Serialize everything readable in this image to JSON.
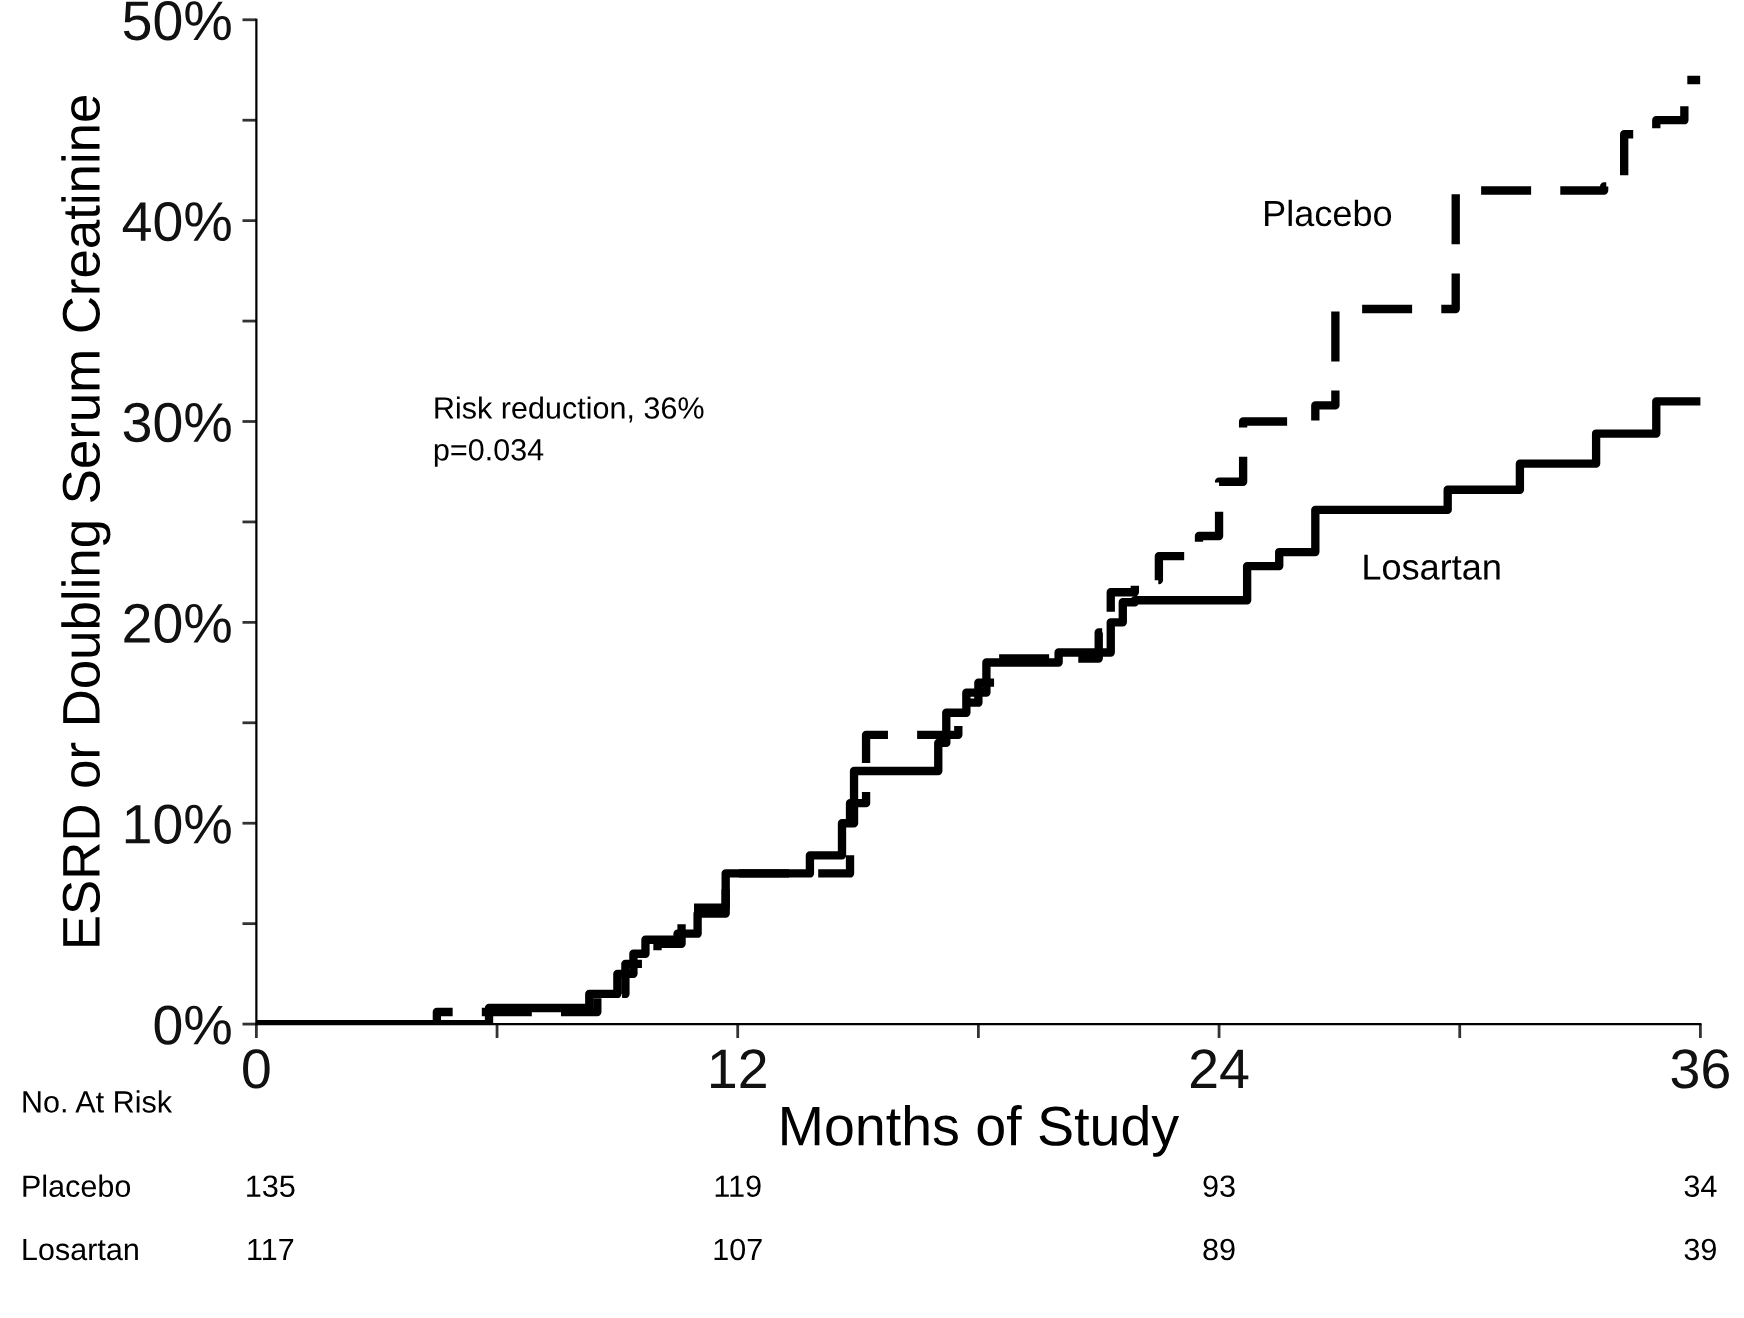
{
  "chart_data": {
    "type": "step",
    "xlabel": "Months of Study",
    "ylabel": "ESRD or Doubling Serum Creatinine",
    "xlim": [
      0,
      36
    ],
    "xticks": [
      0,
      {
        "value": 6,
        "label": null
      },
      12,
      {
        "value": 18,
        "label": null
      },
      24,
      {
        "value": 30,
        "label": null
      },
      36
    ],
    "ylim": [
      0,
      50
    ],
    "yticks": [
      {
        "value": 0,
        "label": "0%"
      },
      {
        "value": 5,
        "label": null
      },
      {
        "value": 10,
        "label": "10%"
      },
      {
        "value": 15,
        "label": null
      },
      {
        "value": 20,
        "label": "20%"
      },
      {
        "value": 25,
        "label": null
      },
      {
        "value": 30,
        "label": "30%"
      },
      {
        "value": 35,
        "label": null
      },
      {
        "value": 40,
        "label": "40%"
      },
      {
        "value": 45,
        "label": null
      },
      {
        "value": 50,
        "label": "50%"
      }
    ],
    "grid": false,
    "legend": false,
    "series": [
      {
        "name": "Placebo",
        "color": "#000000",
        "line_style": "dashed",
        "x": [
          0,
          4.5,
          8.5,
          9.2,
          10,
          10.6,
          11.7,
          14.6,
          14.8,
          15.2,
          17.0,
          17.5,
          18,
          18.5,
          20.0,
          21.0,
          21.3,
          21.9,
          22.5,
          23.5,
          24.0,
          24.6,
          26.4,
          26.9,
          29.0,
          29.9,
          33.6,
          34.1,
          34.9,
          35.6,
          36
        ],
        "values": [
          0,
          0.6,
          1.5,
          3,
          4,
          5.8,
          7.5,
          7.5,
          11,
          14.4,
          14.4,
          16,
          17,
          18.2,
          18.2,
          19.5,
          21.5,
          22.1,
          23.3,
          24.3,
          27,
          30,
          30.8,
          35.6,
          35.6,
          41.5,
          41.7,
          44.3,
          45,
          47,
          47
        ]
      },
      {
        "name": "Losartan",
        "color": "#000000",
        "line_style": "solid",
        "x": [
          0,
          5.8,
          8.3,
          9,
          9.4,
          9.7,
          10.5,
          11,
          11.7,
          13.8,
          14.6,
          14.9,
          17.0,
          17.2,
          17.7,
          18.2,
          20,
          21.3,
          21.6,
          21.9,
          24.7,
          25.5,
          26.4,
          29.7,
          31.5,
          33.4,
          34.9,
          36
        ],
        "values": [
          0,
          0.8,
          1.5,
          2.5,
          3.5,
          4.2,
          4.5,
          5.5,
          7.5,
          8.4,
          10,
          12.6,
          14,
          15.5,
          16.5,
          18,
          18.5,
          20,
          21,
          21.1,
          22.8,
          23.5,
          25.6,
          26.6,
          27.9,
          29.4,
          31.0,
          31.0
        ]
      }
    ],
    "annotations": [
      "Risk reduction, 36%\np=0.034",
      "No. At Risk",
      "Placebo",
      "135",
      "119",
      "93",
      "34",
      "Losartan",
      "117",
      "107",
      "89",
      "39"
    ]
  }
}
